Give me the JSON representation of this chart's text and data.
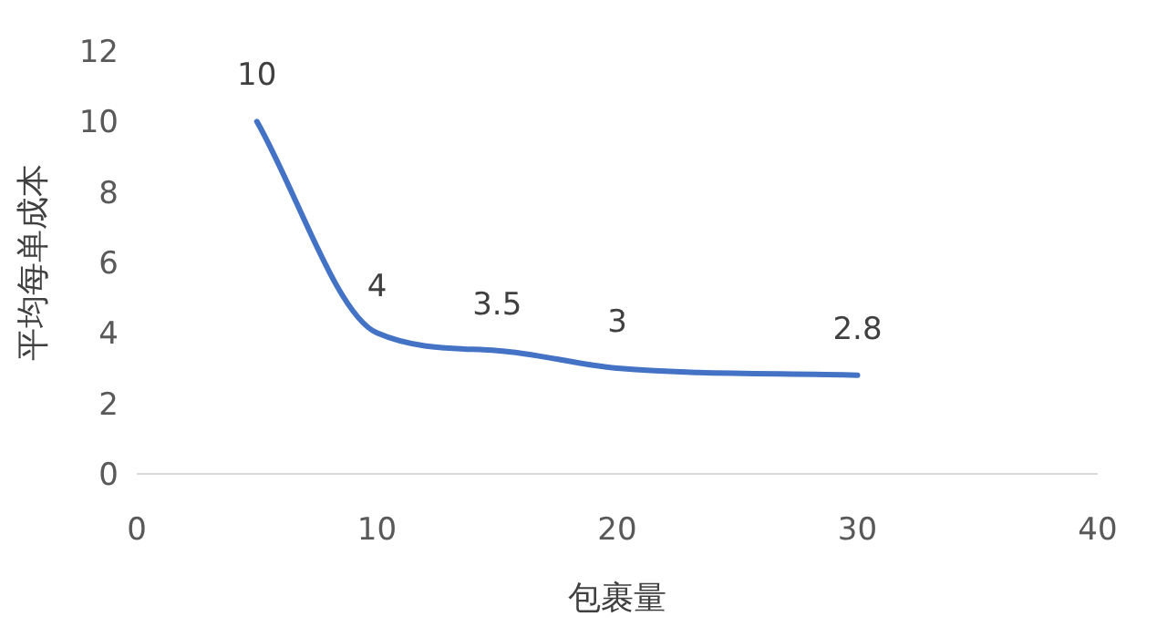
{
  "chart_data": {
    "type": "line",
    "xlabel": "包裹量",
    "ylabel": "平均每单成本",
    "x": [
      5,
      10,
      15,
      20,
      30
    ],
    "series": [
      {
        "color": "#4472c4",
        "values": [
          10,
          4,
          3.5,
          3,
          2.8
        ]
      }
    ],
    "xlim": [
      0,
      40
    ],
    "ylim": [
      0,
      12
    ],
    "xticks": [
      0,
      10,
      20,
      30,
      40
    ],
    "yticks": [
      0,
      2,
      4,
      6,
      8,
      10,
      12
    ],
    "data_labels": true
  }
}
